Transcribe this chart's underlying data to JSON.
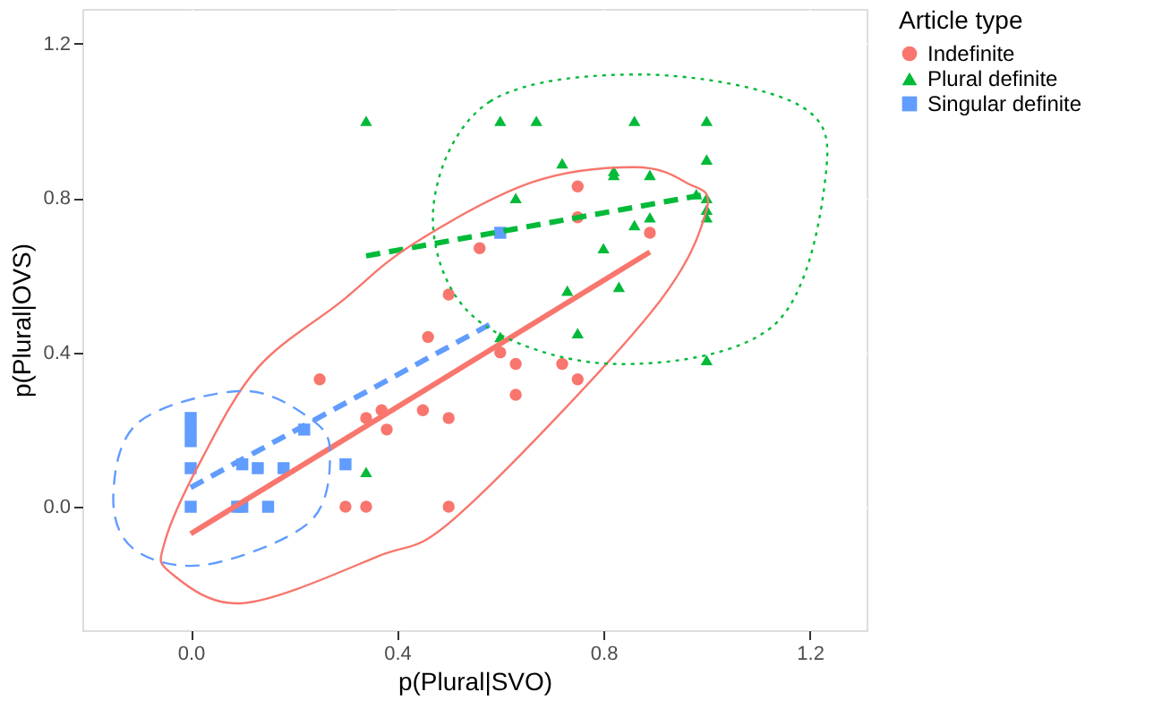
{
  "chart_data": {
    "type": "scatter",
    "xlabel": "p(Plural|SVO)",
    "ylabel": "p(Plural|OVS)",
    "legend_title": "Article type",
    "xlim": [
      -0.21,
      1.31
    ],
    "ylim": [
      -0.32,
      1.29
    ],
    "xticks": [
      {
        "value": 0,
        "label": "0.0"
      },
      {
        "value": 0.4,
        "label": "0.4"
      },
      {
        "value": 0.8,
        "label": "0.8"
      },
      {
        "value": 1.2,
        "label": "1.2"
      }
    ],
    "yticks": [
      {
        "value": 0,
        "label": "0.0"
      },
      {
        "value": 0.4,
        "label": "0.4"
      },
      {
        "value": 0.8,
        "label": "0.8"
      },
      {
        "value": 1.2,
        "label": "1.2"
      }
    ],
    "grid": true,
    "legend": "right",
    "series": [
      {
        "name": "Indefinite",
        "color": "#f8766d",
        "marker": "circle",
        "x": [
          0.75,
          0.56,
          0.89,
          0.75,
          0.5,
          0.46,
          0.6,
          0.63,
          0.72,
          0.75,
          0.63,
          0.25,
          0.37,
          0.34,
          0.38,
          0.45,
          0.5,
          0.3,
          0.34,
          0.5
        ],
        "values": [
          0.83,
          0.67,
          0.71,
          0.75,
          0.55,
          0.44,
          0.4,
          0.37,
          0.37,
          0.33,
          0.29,
          0.33,
          0.25,
          0.23,
          0.2,
          0.25,
          0.23,
          0,
          0,
          0
        ]
      },
      {
        "name": "Plural definite",
        "color": "#00ba38",
        "marker": "triangle",
        "x": [
          0.34,
          0.6,
          0.67,
          0.86,
          1.0,
          1.0,
          0.72,
          0.82,
          0.82,
          0.89,
          0.63,
          1.0,
          1.0,
          1.0,
          0.98,
          0.89,
          0.86,
          0.8,
          0.83,
          0.73,
          0.75,
          1.0,
          0.6,
          0.34
        ],
        "values": [
          1.0,
          1.0,
          1.0,
          1.0,
          1.0,
          0.9,
          0.89,
          0.87,
          0.86,
          0.86,
          0.8,
          0.8,
          0.77,
          0.75,
          0.81,
          0.75,
          0.73,
          0.67,
          0.57,
          0.56,
          0.45,
          0.38,
          0.44,
          0.09
        ]
      },
      {
        "name": "Singular definite",
        "color": "#619cff",
        "marker": "square",
        "x": [
          0,
          0,
          0,
          0,
          0,
          0.09,
          0.1,
          0.15,
          0.1,
          0.13,
          0.18,
          0.22,
          0.3,
          0.6
        ],
        "values": [
          0.23,
          0.2,
          0.17,
          0.1,
          0,
          0,
          0,
          0,
          0.11,
          0.1,
          0.1,
          0.2,
          0.11,
          0.71
        ]
      },
      {
        "type": "line",
        "color": "#f8766d",
        "line_style": "solid",
        "x": [
          0,
          0.89
        ],
        "values": [
          -0.07,
          0.66
        ]
      },
      {
        "type": "line",
        "color": "#00ba38",
        "line_style": "dashed",
        "x": [
          0.34,
          1.0
        ],
        "values": [
          0.65,
          0.81
        ]
      },
      {
        "type": "line",
        "color": "#619cff",
        "line_style": "dashed",
        "x": [
          0,
          0.59
        ],
        "values": [
          0.05,
          0.48
        ]
      }
    ]
  }
}
